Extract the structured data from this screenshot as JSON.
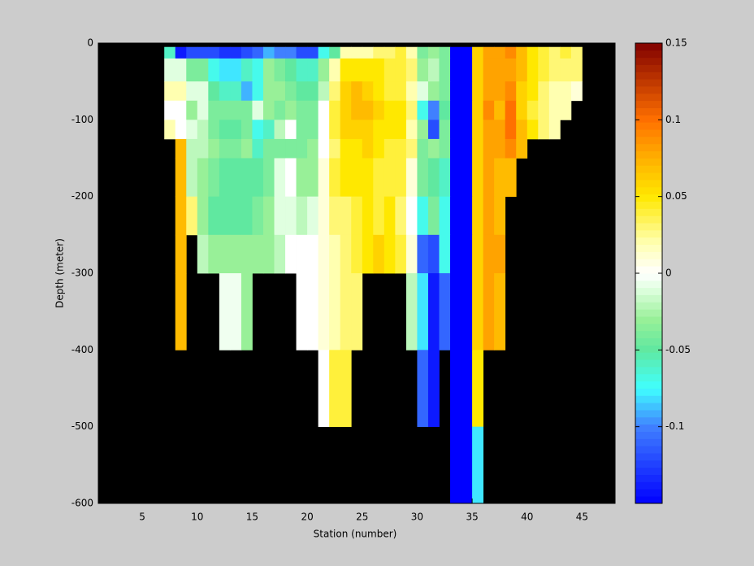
{
  "chart_data": {
    "type": "heatmap",
    "xlabel": "Station (number)",
    "ylabel": "Depth (meter)",
    "xlim": [
      1,
      48
    ],
    "ylim": [
      -600,
      0
    ],
    "xticks": [
      5,
      10,
      15,
      20,
      25,
      30,
      35,
      40,
      45
    ],
    "yticks": [
      0,
      -100,
      -200,
      -300,
      -400,
      -500,
      -600
    ],
    "background": "#000000",
    "clim": [
      -0.15,
      0.15
    ],
    "cticks": [
      0.15,
      0.1,
      0.05,
      0,
      -0.05,
      -0.1
    ],
    "colormap": [
      {
        "value": -0.15,
        "color": "#0000ff"
      },
      {
        "value": -0.1,
        "color": "#4080ff"
      },
      {
        "value": -0.075,
        "color": "#40ffff"
      },
      {
        "value": -0.05,
        "color": "#60e8a0"
      },
      {
        "value": -0.03,
        "color": "#98f098"
      },
      {
        "value": -0.01,
        "color": "#e0ffe0"
      },
      {
        "value": 0,
        "color": "#ffffff"
      },
      {
        "value": 0.02,
        "color": "#ffffb0"
      },
      {
        "value": 0.05,
        "color": "#ffe800"
      },
      {
        "value": 0.075,
        "color": "#ffb000"
      },
      {
        "value": 0.1,
        "color": "#ff7000"
      },
      {
        "value": 0.15,
        "color": "#800000"
      }
    ],
    "x": [
      7,
      8,
      9,
      10,
      11,
      12,
      13,
      14,
      15,
      16,
      17,
      18,
      19,
      20,
      21,
      22,
      23,
      24,
      25,
      26,
      27,
      28,
      29,
      30,
      31,
      32,
      33,
      34,
      35,
      36,
      37,
      38,
      39,
      40,
      41,
      42,
      43,
      44,
      45
    ],
    "y": [
      -5,
      -20,
      -50,
      -75,
      -100,
      -125,
      -150,
      -200,
      -250,
      -300,
      -400,
      -500,
      -600
    ],
    "values": [
      [
        -0.06,
        -0.14,
        -0.12,
        -0.12,
        -0.12,
        -0.13,
        -0.13,
        -0.12,
        -0.11,
        -0.09,
        -0.1,
        -0.1,
        -0.12,
        -0.12,
        -0.07,
        -0.05,
        0.02,
        0.02,
        0.02,
        0.03,
        0.03,
        0.04,
        0.02,
        -0.04,
        -0.03,
        -0.04,
        -0.15,
        -0.15,
        0.06,
        0.08,
        0.08,
        0.09,
        0.07,
        0.05,
        0.04,
        0.03,
        0.04,
        0.03
      ],
      [
        -0.01,
        -0.01,
        -0.04,
        -0.04,
        -0.07,
        -0.08,
        -0.08,
        -0.06,
        -0.07,
        -0.03,
        -0.04,
        -0.05,
        -0.06,
        -0.06,
        -0.03,
        0.02,
        0.05,
        0.05,
        0.05,
        0.05,
        0.04,
        0.04,
        0.03,
        -0.03,
        -0.02,
        -0.04,
        -0.15,
        -0.15,
        0.06,
        0.08,
        0.08,
        0.08,
        0.07,
        0.05,
        0.04,
        0.03,
        0.03,
        0.03
      ],
      [
        0.02,
        0.02,
        -0.01,
        -0.01,
        -0.05,
        -0.06,
        -0.06,
        -0.09,
        -0.07,
        -0.03,
        -0.03,
        -0.04,
        -0.05,
        -0.05,
        -0.02,
        0.03,
        0.06,
        0.07,
        0.06,
        0.05,
        0.04,
        0.04,
        0.02,
        -0.01,
        -0.03,
        -0.04,
        -0.15,
        -0.15,
        0.06,
        0.08,
        0.08,
        0.09,
        0.06,
        0.05,
        0.03,
        0.02,
        0.02,
        0.01
      ],
      [
        0,
        0,
        -0.03,
        -0.01,
        -0.04,
        -0.04,
        -0.04,
        -0.04,
        -0.01,
        -0.03,
        -0.04,
        -0.03,
        -0.04,
        -0.04,
        0,
        0.04,
        0.06,
        0.07,
        0.07,
        0.06,
        0.05,
        0.05,
        0.03,
        -0.07,
        -0.1,
        -0.05,
        -0.15,
        -0.15,
        0.06,
        0.09,
        0.07,
        0.1,
        0.06,
        0.04,
        0.03,
        0.02,
        0.02,
        null
      ],
      [
        0.02,
        0,
        -0.01,
        -0.02,
        -0.04,
        -0.05,
        -0.05,
        -0.04,
        -0.07,
        -0.06,
        -0.02,
        0,
        -0.04,
        -0.04,
        0,
        0.04,
        0.06,
        0.06,
        0.06,
        0.05,
        0.05,
        0.05,
        0.02,
        -0.03,
        -0.12,
        -0.04,
        -0.15,
        -0.15,
        0.06,
        0.08,
        0.08,
        0.1,
        0.07,
        0.05,
        0.03,
        0.02,
        null,
        null
      ],
      [
        null,
        0.07,
        -0.02,
        -0.02,
        -0.03,
        -0.04,
        -0.04,
        -0.03,
        -0.06,
        -0.04,
        -0.04,
        -0.04,
        -0.04,
        -0.03,
        0,
        0.03,
        0.05,
        0.05,
        0.06,
        0.05,
        0.04,
        0.04,
        0.03,
        -0.04,
        -0.03,
        -0.04,
        -0.15,
        -0.15,
        0.06,
        0.08,
        0.08,
        0.09,
        0.07,
        null,
        null,
        null,
        null,
        null
      ],
      [
        null,
        0.07,
        -0.02,
        -0.03,
        -0.04,
        -0.05,
        -0.05,
        -0.05,
        -0.05,
        -0.04,
        -0.01,
        0,
        -0.03,
        -0.03,
        0.01,
        0.04,
        0.05,
        0.05,
        0.05,
        0.04,
        0.04,
        0.04,
        0.01,
        -0.04,
        -0.05,
        -0.06,
        -0.15,
        -0.15,
        0.06,
        0.08,
        0.07,
        0.07,
        null,
        null,
        null,
        null,
        null,
        null
      ],
      [
        null,
        0.07,
        0.03,
        -0.03,
        -0.05,
        -0.05,
        -0.05,
        -0.05,
        -0.04,
        -0.03,
        -0.01,
        -0.01,
        -0.02,
        -0.01,
        0.01,
        0.03,
        0.03,
        0.04,
        0.05,
        0.04,
        0.05,
        0.03,
        0,
        -0.07,
        -0.04,
        -0.07,
        -0.15,
        -0.15,
        0.06,
        0.08,
        0.07,
        null,
        null,
        null,
        null,
        null,
        null,
        null
      ],
      [
        null,
        0.07,
        null,
        -0.02,
        -0.03,
        -0.03,
        -0.03,
        -0.03,
        -0.03,
        -0.03,
        -0.02,
        0,
        0,
        0,
        0.01,
        0.02,
        0.03,
        0.04,
        0.05,
        0.06,
        0.05,
        0.04,
        0.01,
        -0.11,
        -0.12,
        -0.07,
        -0.15,
        -0.15,
        0.06,
        0.08,
        0.08,
        null,
        null,
        null,
        null,
        null,
        null,
        null
      ],
      [
        null,
        0.07,
        null,
        null,
        null,
        -0.005,
        -0.005,
        -0.03,
        null,
        null,
        null,
        null,
        0,
        0,
        0.01,
        0.02,
        0.03,
        0.03,
        null,
        null,
        null,
        null,
        -0.02,
        -0.08,
        -0.14,
        -0.11,
        -0.15,
        -0.15,
        0.06,
        0.08,
        0.07,
        null,
        null,
        null,
        null,
        null,
        null,
        null
      ],
      [
        null,
        null,
        null,
        null,
        null,
        null,
        null,
        null,
        null,
        null,
        null,
        null,
        null,
        null,
        0,
        0.04,
        0.04,
        null,
        null,
        null,
        null,
        null,
        null,
        -0.11,
        -0.14,
        null,
        -0.15,
        -0.15,
        0.05,
        null,
        null,
        null,
        null,
        null,
        null,
        null,
        null,
        null
      ],
      [
        null,
        null,
        null,
        null,
        null,
        null,
        null,
        null,
        null,
        null,
        null,
        null,
        null,
        null,
        null,
        null,
        null,
        null,
        null,
        null,
        null,
        null,
        null,
        null,
        null,
        null,
        -0.15,
        -0.15,
        -0.08,
        null,
        null,
        null,
        null,
        null,
        null,
        null,
        null,
        null
      ]
    ]
  }
}
